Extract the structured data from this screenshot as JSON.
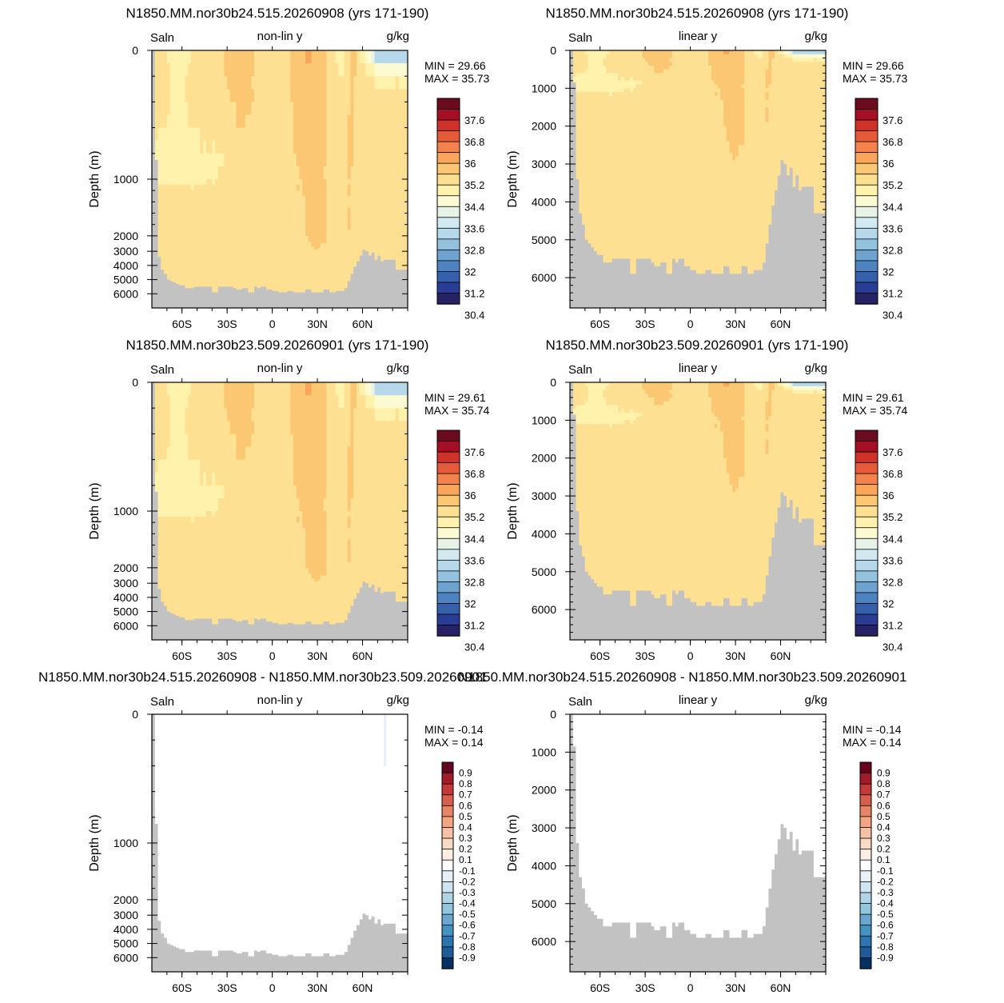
{
  "chart_data": [
    {
      "type": "heatmap",
      "title": "N1850.MM.nor30b24.515.20260908 (yrs 171-190)",
      "left_label": "Saln",
      "center_label": "non-lin y",
      "right_label": "g/kg",
      "ylabel": "Depth (m)",
      "xticks": [
        "60S",
        "30S",
        "0",
        "30N",
        "60N"
      ],
      "yticks": [
        "0",
        "1000",
        "2000",
        "3000",
        "4000",
        "5000",
        "6000"
      ],
      "yscale": "non-linear",
      "ylim": [
        0,
        6800
      ],
      "min_text": "MIN =  29.66",
      "max_text": "MAX =  35.73",
      "colorbar_labels": [
        "37.6",
        "36.8",
        "36",
        "35.2",
        "34.4",
        "33.6",
        "32.8",
        "32",
        "31.2",
        "30.4"
      ]
    },
    {
      "type": "heatmap",
      "title": "N1850.MM.nor30b24.515.20260908 (yrs 171-190)",
      "left_label": "Saln",
      "center_label": "linear y",
      "right_label": "g/kg",
      "ylabel": "Depth (m)",
      "xticks": [
        "60S",
        "30S",
        "0",
        "30N",
        "60N"
      ],
      "yticks": [
        "0",
        "1000",
        "2000",
        "3000",
        "4000",
        "5000",
        "6000"
      ],
      "yscale": "linear",
      "ylim": [
        0,
        6800
      ],
      "min_text": "MIN =  29.66",
      "max_text": "MAX =  35.73",
      "colorbar_labels": [
        "37.6",
        "36.8",
        "36",
        "35.2",
        "34.4",
        "33.6",
        "32.8",
        "32",
        "31.2",
        "30.4"
      ]
    },
    {
      "type": "heatmap",
      "title": "N1850.MM.nor30b23.509.20260901 (yrs 171-190)",
      "left_label": "Saln",
      "center_label": "non-lin y",
      "right_label": "g/kg",
      "ylabel": "Depth (m)",
      "xticks": [
        "60S",
        "30S",
        "0",
        "30N",
        "60N"
      ],
      "yticks": [
        "0",
        "1000",
        "2000",
        "3000",
        "4000",
        "5000",
        "6000"
      ],
      "yscale": "non-linear",
      "ylim": [
        0,
        6800
      ],
      "min_text": "MIN =  29.61",
      "max_text": "MAX =  35.74",
      "colorbar_labels": [
        "37.6",
        "36.8",
        "36",
        "35.2",
        "34.4",
        "33.6",
        "32.8",
        "32",
        "31.2",
        "30.4"
      ]
    },
    {
      "type": "heatmap",
      "title": "N1850.MM.nor30b23.509.20260901 (yrs 171-190)",
      "left_label": "Saln",
      "center_label": "linear y",
      "right_label": "g/kg",
      "ylabel": "Depth (m)",
      "xticks": [
        "60S",
        "30S",
        "0",
        "30N",
        "60N"
      ],
      "yticks": [
        "0",
        "1000",
        "2000",
        "3000",
        "4000",
        "5000",
        "6000"
      ],
      "yscale": "linear",
      "ylim": [
        0,
        6800
      ],
      "min_text": "MIN =  29.61",
      "max_text": "MAX =  35.74",
      "colorbar_labels": [
        "37.6",
        "36.8",
        "36",
        "35.2",
        "34.4",
        "33.6",
        "32.8",
        "32",
        "31.2",
        "30.4"
      ]
    },
    {
      "type": "heatmap",
      "title": "N1850.MM.nor30b24.515.20260908 - N1850.MM.nor30b23.509.20260901",
      "left_label": "Saln",
      "center_label": "non-lin y",
      "right_label": "g/kg",
      "ylabel": "Depth (m)",
      "xticks": [
        "60S",
        "30S",
        "0",
        "30N",
        "60N"
      ],
      "yticks": [
        "0",
        "1000",
        "2000",
        "3000",
        "4000",
        "5000",
        "6000"
      ],
      "yscale": "non-linear",
      "ylim": [
        0,
        6800
      ],
      "min_text": "MIN =  -0.14",
      "max_text": "MAX =   0.14",
      "colorbar_labels": [
        "0.9",
        "0.8",
        "0.7",
        "0.6",
        "0.5",
        "0.4",
        "0.3",
        "0.2",
        "0.1",
        "-0.1",
        "-0.2",
        "-0.3",
        "-0.4",
        "-0.5",
        "-0.6",
        "-0.7",
        "-0.8",
        "-0.9"
      ]
    },
    {
      "type": "heatmap",
      "title": "N1850.MM.nor30b24.515.20260908 - N1850.MM.nor30b23.509.20260901",
      "left_label": "Saln",
      "center_label": "linear y",
      "right_label": "g/kg",
      "ylabel": "Depth (m)",
      "xticks": [
        "60S",
        "30S",
        "0",
        "30N",
        "60N"
      ],
      "yticks": [
        "0",
        "1000",
        "2000",
        "3000",
        "4000",
        "5000",
        "6000"
      ],
      "yscale": "linear",
      "ylim": [
        0,
        6800
      ],
      "min_text": "MIN =  -0.14",
      "max_text": "MAX =   0.14",
      "colorbar_labels": [
        "0.9",
        "0.8",
        "0.7",
        "0.6",
        "0.5",
        "0.4",
        "0.3",
        "0.2",
        "0.1",
        "-0.1",
        "-0.2",
        "-0.3",
        "-0.4",
        "-0.5",
        "-0.6",
        "-0.7",
        "-0.8",
        "-0.9"
      ]
    }
  ],
  "colors": {
    "salinity_scale": [
      "#6b0b1f",
      "#a50f26",
      "#cf3229",
      "#e55a38",
      "#f3824c",
      "#f9a65b",
      "#fcc772",
      "#fee092",
      "#fff2ad",
      "#fbfad3",
      "#e8f3e8",
      "#d2e9f1",
      "#b5d9ea",
      "#93c2de",
      "#6fa3cf",
      "#4d83c0",
      "#3660ac",
      "#283d93",
      "#272165"
    ],
    "diff_scale": [
      "#67001f",
      "#a11b2b",
      "#c5393a",
      "#d6604d",
      "#e58667",
      "#f4a582",
      "#f7c1a6",
      "#fad9c5",
      "#fdeee5",
      "#ffffff",
      "#e9f1f8",
      "#d1e5f0",
      "#b2d3e7",
      "#92c5de",
      "#6aa7cf",
      "#4393c3",
      "#2b75b2",
      "#1e5b99",
      "#053061"
    ],
    "land": "#c2c2c2"
  }
}
